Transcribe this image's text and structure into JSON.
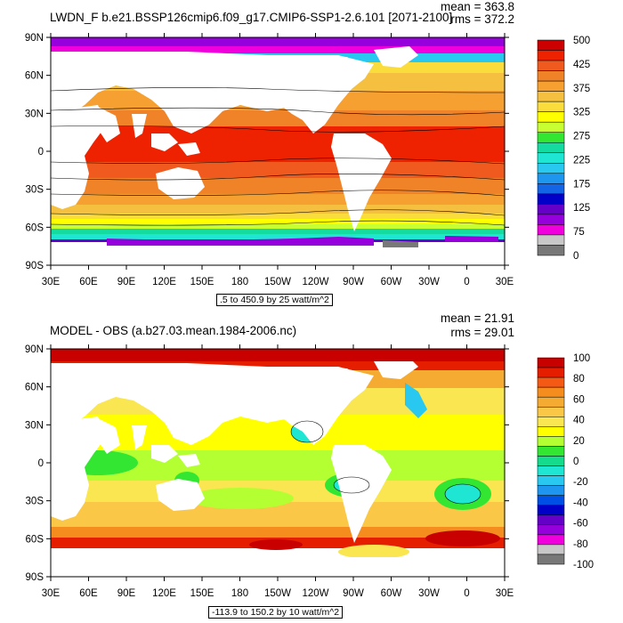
{
  "panels": [
    {
      "title": "LWDN_F b.e21.BSSP126cmip6.f09_g17.CMIP6-SSP1-2.6.101 [2071-2100]",
      "mean": "mean = 363.8",
      "rms": "rms = 372.2",
      "contour_note": ".5 to 450.9 by 25 watt/m^2",
      "colorbar_labels": [
        "500",
        "425",
        "375",
        "325",
        "275",
        "225",
        "175",
        "125",
        "75",
        "0"
      ],
      "colors": [
        "#cc0000",
        "#ee2200",
        "#f05a1e",
        "#f08228",
        "#f5a030",
        "#f5c040",
        "#fadc3c",
        "#ffff00",
        "#c8ff32",
        "#32e632",
        "#14dca0",
        "#1ee6d2",
        "#28c8f0",
        "#1e96f0",
        "#1464e6",
        "#0000c8",
        "#6400c8",
        "#9600dc",
        "#f000dc",
        "#c8c8c8",
        "#787878"
      ]
    },
    {
      "title": "MODEL - OBS (a.b27.03.mean.1984-2006.nc)",
      "mean": "mean = 21.91",
      "rms": "rms = 29.01",
      "contour_note": "-113.9 to 150.2 by 10 watt/m^2",
      "colorbar_labels": [
        "100",
        "80",
        "60",
        "40",
        "20",
        "0",
        "-20",
        "-40",
        "-60",
        "-80",
        "-100"
      ],
      "colors": [
        "#c80000",
        "#e61e00",
        "#f55a14",
        "#f58c1e",
        "#f5aa32",
        "#fac846",
        "#fae650",
        "#ffff00",
        "#b4ff32",
        "#32e632",
        "#14dc8c",
        "#1ee6d2",
        "#28c8f0",
        "#1e96f0",
        "#0050e6",
        "#0000c8",
        "#6400c8",
        "#9600dc",
        "#f000dc",
        "#c8c8c8",
        "#787878"
      ]
    }
  ],
  "axes": {
    "lat_labels": [
      "90N",
      "60N",
      "30N",
      "0",
      "30S",
      "60S",
      "90S"
    ],
    "lon_labels": [
      "30E",
      "60E",
      "90E",
      "120E",
      "150E",
      "180",
      "150W",
      "120W",
      "90W",
      "60W",
      "30W",
      "0",
      "30E"
    ]
  }
}
